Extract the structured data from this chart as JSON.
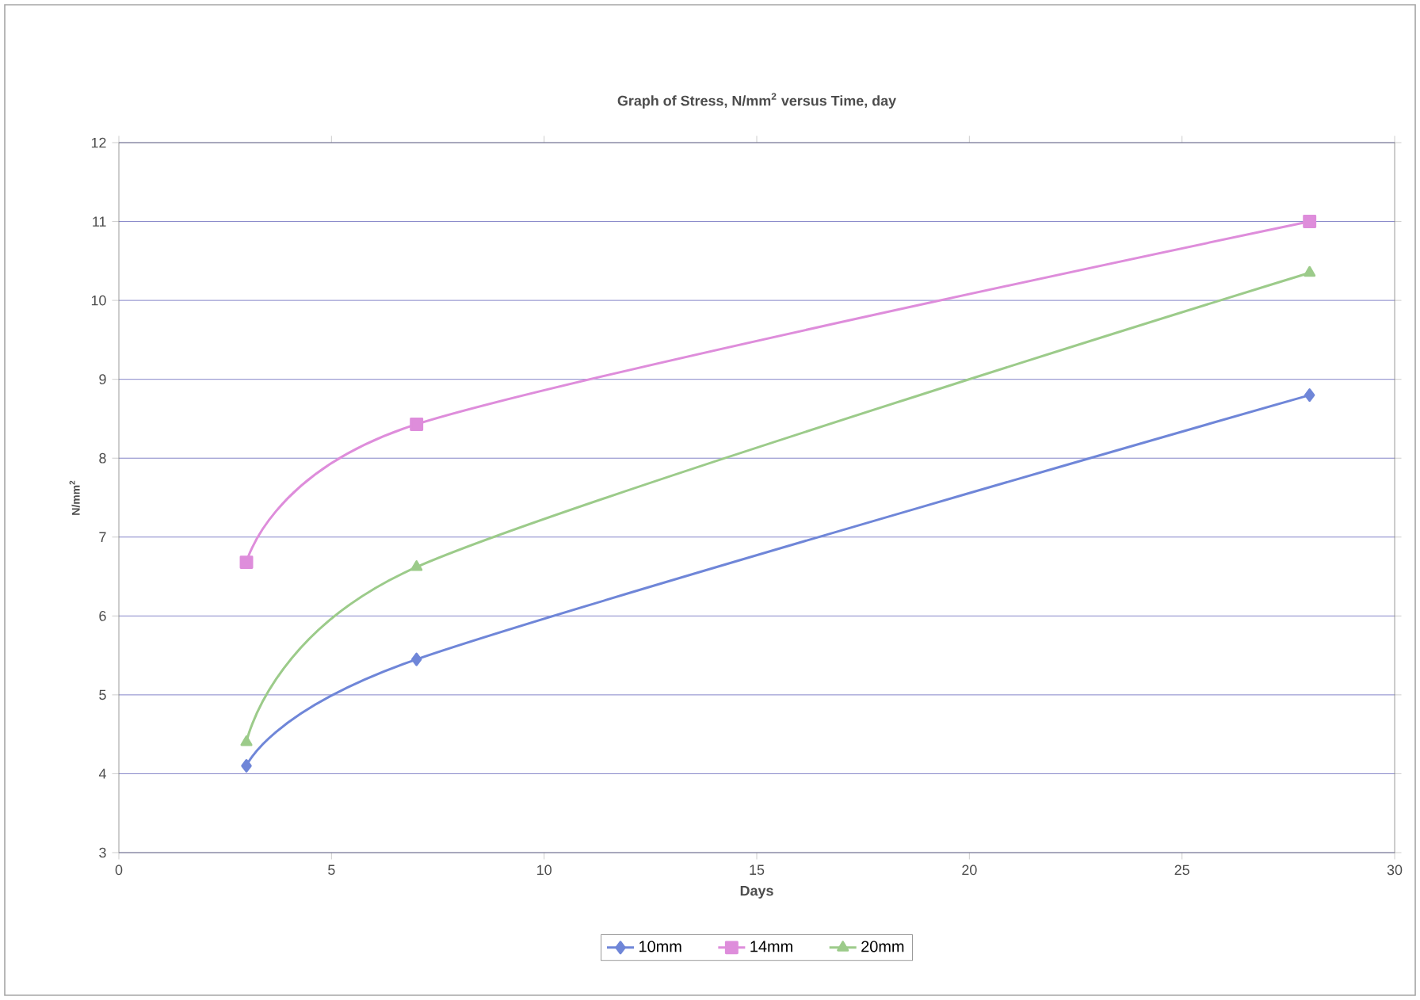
{
  "chart_data": {
    "type": "line",
    "title": "Graph of Stress, N/mm$^{2}$ versus Time, day",
    "xlabel": "Days",
    "ylabel": "N/mm$^{2}$",
    "x": [
      3,
      7,
      28
    ],
    "series": [
      {
        "name": "10mm",
        "color": "#6f86d8",
        "marker": "diamond",
        "values": [
          4.1,
          5.45,
          8.8
        ]
      },
      {
        "name": "14mm",
        "color": "#de8ddb",
        "marker": "square",
        "values": [
          6.68,
          8.43,
          11.0
        ]
      },
      {
        "name": "20mm",
        "color": "#9ccb8a",
        "marker": "triangle",
        "values": [
          4.4,
          6.62,
          10.35
        ]
      }
    ],
    "xlim": [
      0,
      30
    ],
    "xticks": [
      0,
      5,
      10,
      15,
      20,
      25,
      30
    ],
    "ylim": [
      3,
      12
    ],
    "yticks": [
      3,
      4,
      5,
      6,
      7,
      8,
      9,
      10,
      11,
      12
    ],
    "grid": "y",
    "legend": "bottom",
    "line_style": "solid"
  }
}
